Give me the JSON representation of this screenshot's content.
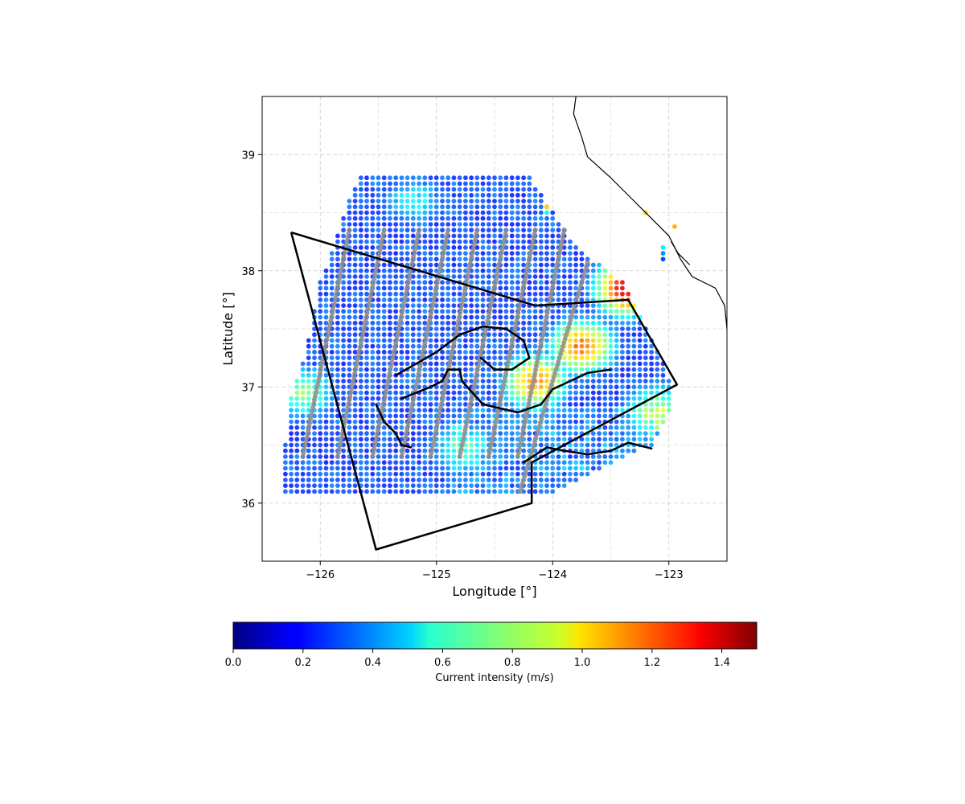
{
  "chart_data": {
    "type": "scatter",
    "title": "",
    "xlabel": "Longitude [°]",
    "ylabel": "Latitude [°]",
    "xlim": [
      -126.5,
      -122.5
    ],
    "ylim": [
      35.5,
      39.5
    ],
    "xticks": [
      -126,
      -125,
      -124,
      -123
    ],
    "yticks": [
      36,
      37,
      38,
      39
    ],
    "xtick_labels": [
      "−126",
      "−125",
      "−124",
      "−123"
    ],
    "ytick_labels": [
      "36",
      "37",
      "38",
      "39"
    ],
    "grid": true,
    "grid_style": "dashed",
    "colormap": "jet",
    "colorbar": {
      "label": "Current intensity (m/s)",
      "range": [
        0.0,
        1.5
      ],
      "ticks": [
        0.0,
        0.2,
        0.4,
        0.6,
        0.8,
        1.0,
        1.2,
        1.4
      ],
      "tick_labels": [
        "0.0",
        "0.2",
        "0.4",
        "0.6",
        "0.8",
        "1.0",
        "1.2",
        "1.4"
      ],
      "orientation": "horizontal",
      "placement": "bottom"
    },
    "current_field": {
      "description_grid_spacing_deg": 0.05,
      "lat_min": 36.1,
      "lat_max": 38.8,
      "west_edge": [
        [
          36.5,
          -126.3
        ],
        [
          36.9,
          -126.25
        ],
        [
          37.3,
          -126.12
        ],
        [
          37.9,
          -126.0
        ],
        [
          38.3,
          -125.85
        ],
        [
          38.6,
          -125.75
        ],
        [
          38.8,
          -125.65
        ]
      ],
      "east_edge": [
        [
          36.1,
          -124.0
        ],
        [
          36.5,
          -123.15
        ],
        [
          36.8,
          -123.0
        ],
        [
          37.0,
          -122.98
        ],
        [
          37.2,
          -123.05
        ],
        [
          37.5,
          -123.2
        ],
        [
          37.9,
          -123.4
        ],
        [
          38.2,
          -123.8
        ],
        [
          38.8,
          -124.2
        ]
      ],
      "background_speed": 0.2,
      "high_speed_cores": [
        {
          "lon": -124.15,
          "lat": 37.05,
          "peak": 1.05
        },
        {
          "lon": -123.75,
          "lat": 37.35,
          "peak": 1.1
        },
        {
          "lon": -123.35,
          "lat": 37.85,
          "peak": 1.35
        },
        {
          "lon": -126.15,
          "lat": 36.95,
          "peak": 0.7
        },
        {
          "lon": -124.8,
          "lat": 36.5,
          "peak": 0.55
        },
        {
          "lon": -125.2,
          "lat": 38.6,
          "peak": 0.5
        },
        {
          "lon": -123.1,
          "lat": 36.8,
          "peak": 0.7
        }
      ],
      "coastal_points": [
        {
          "lon": -124.05,
          "lat": 38.55,
          "value": 1.0
        },
        {
          "lon": -124.05,
          "lat": 38.5,
          "value": 0.6
        },
        {
          "lon": -123.2,
          "lat": 38.5,
          "value": 1.0
        },
        {
          "lon": -122.95,
          "lat": 38.38,
          "value": 1.05
        },
        {
          "lon": -123.05,
          "lat": 38.2,
          "value": 0.55
        },
        {
          "lon": -123.05,
          "lat": 38.15,
          "value": 0.4
        },
        {
          "lon": -123.05,
          "lat": 38.1,
          "value": 0.3
        }
      ]
    },
    "satellite_tracks": {
      "color": "#8c8c8c",
      "bottom_lons": [
        -126.15,
        -125.85,
        -125.55,
        -125.3,
        -125.05,
        -124.8,
        -124.55,
        -124.3
      ],
      "top_lons": [
        -125.75,
        -125.45,
        -125.15,
        -124.9,
        -124.65,
        -124.4,
        -124.15,
        -123.9
      ],
      "lat_start": 36.4,
      "lat_end": 38.35,
      "extra_track": {
        "lon0": -124.28,
        "lat0": 36.1,
        "lon1": -123.7,
        "lat1": 38.07
      }
    },
    "polygon_boundary": [
      [
        -126.25,
        38.33
      ],
      [
        -124.15,
        37.7
      ],
      [
        -123.35,
        37.75
      ],
      [
        -122.93,
        37.02
      ],
      [
        -124.18,
        36.35
      ],
      [
        -124.18,
        36.0
      ],
      [
        -125.52,
        35.6
      ],
      [
        -126.25,
        38.33
      ]
    ],
    "contours": [
      [
        [
          -125.35,
          37.1
        ],
        [
          -125.0,
          37.3
        ],
        [
          -124.8,
          37.45
        ],
        [
          -124.6,
          37.52
        ],
        [
          -124.4,
          37.5
        ],
        [
          -124.25,
          37.4
        ],
        [
          -124.2,
          37.25
        ],
        [
          -124.35,
          37.15
        ],
        [
          -124.5,
          37.15
        ],
        [
          -124.62,
          37.25
        ]
      ],
      [
        [
          -125.3,
          36.9
        ],
        [
          -125.05,
          37.0
        ],
        [
          -124.95,
          37.05
        ],
        [
          -124.9,
          37.15
        ],
        [
          -124.8,
          37.15
        ],
        [
          -124.78,
          37.05
        ],
        [
          -124.6,
          36.85
        ],
        [
          -124.3,
          36.78
        ],
        [
          -124.1,
          36.85
        ],
        [
          -124.0,
          36.98
        ],
        [
          -123.85,
          37.05
        ],
        [
          -123.7,
          37.12
        ],
        [
          -123.5,
          37.15
        ]
      ],
      [
        [
          -125.52,
          36.85
        ],
        [
          -125.45,
          36.7
        ],
        [
          -125.35,
          36.6
        ],
        [
          -125.3,
          36.5
        ],
        [
          -125.22,
          36.48
        ]
      ],
      [
        [
          -124.25,
          36.35
        ],
        [
          -124.05,
          36.48
        ],
        [
          -123.9,
          36.45
        ],
        [
          -123.7,
          36.42
        ],
        [
          -123.5,
          36.45
        ],
        [
          -123.35,
          36.52
        ],
        [
          -123.15,
          36.47
        ]
      ]
    ],
    "coastline": [
      [
        -123.8,
        39.5
      ],
      [
        -123.82,
        39.35
      ],
      [
        -123.75,
        39.15
      ],
      [
        -123.7,
        38.98
      ],
      [
        -123.5,
        38.8
      ],
      [
        -123.3,
        38.6
      ],
      [
        -123.15,
        38.45
      ],
      [
        -123.0,
        38.3
      ],
      [
        -122.9,
        38.1
      ],
      [
        -122.8,
        37.95
      ],
      [
        -122.6,
        37.85
      ],
      [
        -122.52,
        37.7
      ],
      [
        -122.5,
        37.5
      ]
    ],
    "coastline_secondary": [
      [
        -122.98,
        38.25
      ],
      [
        -122.92,
        38.15
      ],
      [
        -122.82,
        38.05
      ]
    ]
  }
}
